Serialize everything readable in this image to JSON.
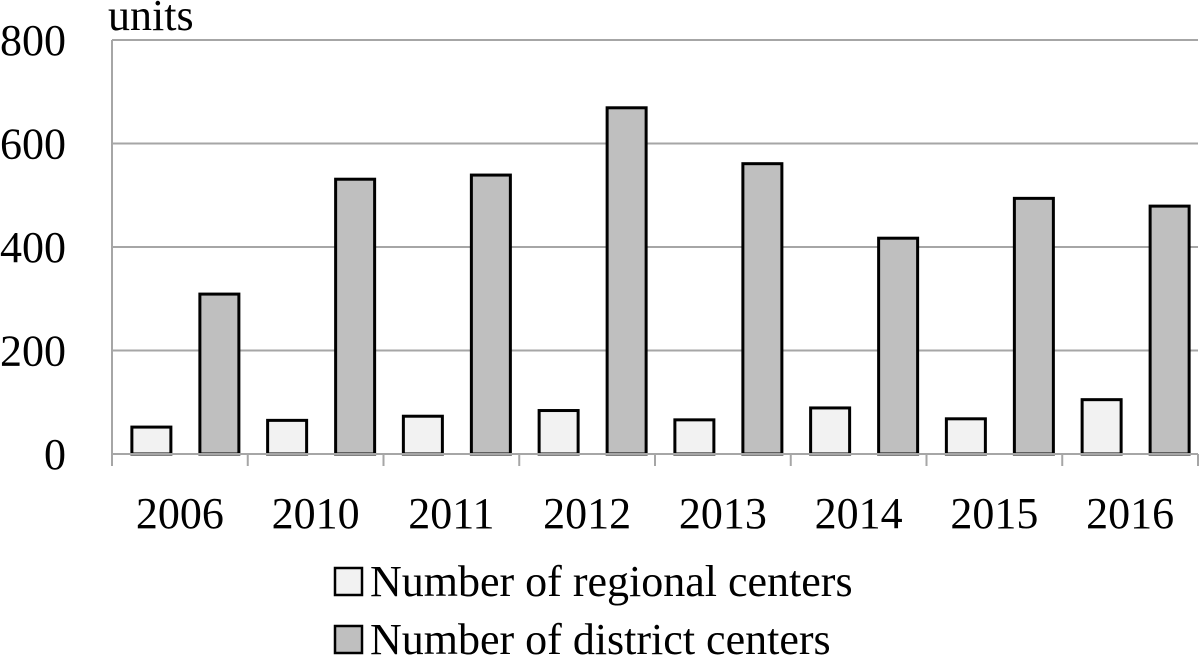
{
  "chart_data": {
    "type": "bar",
    "ylabel": "units",
    "xlabel": "",
    "ylim": [
      0,
      800
    ],
    "yticks": [
      0,
      200,
      400,
      600,
      800
    ],
    "grid": true,
    "legend_position": "bottom",
    "categories": [
      "2006",
      "2010",
      "2011",
      "2012",
      "2013",
      "2014",
      "2015",
      "2016"
    ],
    "series": [
      {
        "name": "Number of regional centers",
        "color": "#f2f2f2",
        "values": [
          52,
          65,
          73,
          84,
          66,
          89,
          68,
          105
        ]
      },
      {
        "name": "Number of district centers",
        "color": "#bfbfbf",
        "values": [
          309,
          531,
          539,
          669,
          561,
          417,
          494,
          479
        ]
      }
    ]
  }
}
